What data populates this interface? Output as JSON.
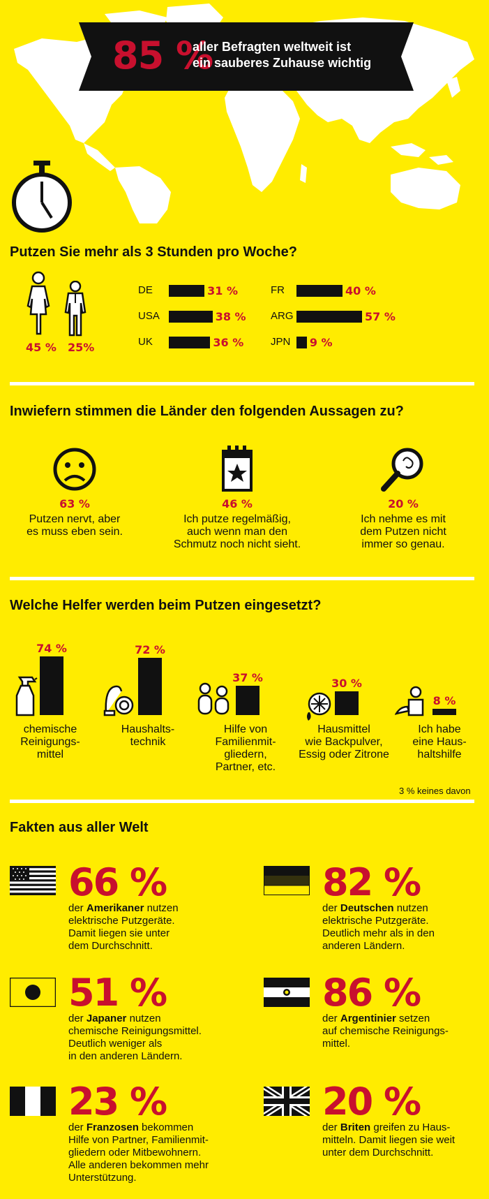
{
  "banner": {
    "pct": "85 %",
    "line1": "aller Befragten weltweit ist",
    "line2": "ein sauberes Zuhause wichtig"
  },
  "hours": {
    "question": "Putzen Sie mehr als 3 Stunden pro Woche?",
    "female_pct": "45 %",
    "male_pct": "25%",
    "countries": [
      {
        "label": "DE",
        "value": 31,
        "text": "31 %"
      },
      {
        "label": "USA",
        "value": 38,
        "text": "38 %"
      },
      {
        "label": "UK",
        "value": 36,
        "text": "36 %"
      },
      {
        "label": "FR",
        "value": 40,
        "text": "40 %"
      },
      {
        "label": "ARG",
        "value": 57,
        "text": "57 %"
      },
      {
        "label": "JPN",
        "value": 9,
        "text": "9 %"
      }
    ]
  },
  "statements": {
    "question": "Inwiefern stimmen die Länder den folgenden Aussagen zu?",
    "items": [
      {
        "icon": "sad-face-icon",
        "pct": "63 %",
        "lines": [
          "Putzen nervt, aber",
          "es muss eben sein."
        ]
      },
      {
        "icon": "calendar-star-icon",
        "pct": "46 %",
        "lines": [
          "Ich putze regelmäßig,",
          "auch wenn man den",
          "Schmutz noch nicht sieht."
        ]
      },
      {
        "icon": "magnifier-icon",
        "pct": "20 %",
        "lines": [
          "Ich nehme es mit",
          "dem Putzen nicht",
          "immer so genau."
        ]
      }
    ]
  },
  "helpers": {
    "question": "Welche Helfer werden beim Putzen eingesetzt?",
    "items": [
      {
        "icon": "spray-bottle-icon",
        "value": 74,
        "text": "74 %",
        "lines": [
          "chemische",
          "Reinigungs-",
          "mittel"
        ]
      },
      {
        "icon": "vacuum-cleaner-icon",
        "value": 72,
        "text": "72 %",
        "lines": [
          "Haushalts-",
          "technik"
        ]
      },
      {
        "icon": "family-icon",
        "value": 37,
        "text": "37 %",
        "lines": [
          "Hilfe von",
          "Familienmit-",
          "gliedern,",
          "Partner, etc."
        ]
      },
      {
        "icon": "lemon-icon",
        "value": 30,
        "text": "30 %",
        "lines": [
          "Hausmittel",
          "wie Backpulver,",
          "Essig oder Zitrone"
        ]
      },
      {
        "icon": "housekeeper-icon",
        "value": 8,
        "text": "8 %",
        "lines": [
          "Ich habe",
          "eine Haus-",
          "haltshilfe"
        ]
      }
    ],
    "note": "3 % keines davon"
  },
  "facts": {
    "title": "Fakten aus aller Welt",
    "items": [
      {
        "flag": "usa-flag-icon",
        "pct": "66 %",
        "bold": "Amerikaner",
        "pre": "der ",
        "post": " nutzen",
        "lines": [
          "elektrische Putzgeräte.",
          "Damit liegen sie unter",
          "dem Durchschnitt."
        ]
      },
      {
        "flag": "germany-flag-icon",
        "pct": "82 %",
        "bold": "Deutschen",
        "pre": "der ",
        "post": " nutzen",
        "lines": [
          "elektrische Putzgeräte.",
          "Deutlich mehr als in den",
          "anderen Ländern."
        ]
      },
      {
        "flag": "japan-flag-icon",
        "pct": "51 %",
        "bold": "Japaner",
        "pre": "der ",
        "post": " nutzen",
        "lines": [
          "chemische Reinigungsmittel.",
          "Deutlich weniger als",
          "in den anderen Ländern."
        ]
      },
      {
        "flag": "argentina-flag-icon",
        "pct": "86 %",
        "bold": "Argentinier",
        "pre": "der ",
        "post": " setzen",
        "lines": [
          "auf chemische Reinigungs-",
          "mittel."
        ]
      },
      {
        "flag": "france-flag-icon",
        "pct": "23 %",
        "bold": "Franzosen",
        "pre": "der ",
        "post": " bekommen",
        "lines": [
          "Hilfe von Partner, Familienmit-",
          "gliedern oder Mitbewohnern.",
          "Alle anderen bekommen mehr",
          "Unterstützung."
        ]
      },
      {
        "flag": "uk-flag-icon",
        "pct": "20 %",
        "bold": "Briten",
        "pre": "der ",
        "post": " greifen zu Haus-",
        "lines": [
          "mitteln. Damit liegen sie weit",
          "unter dem Durchschnitt."
        ]
      }
    ]
  },
  "colors": {
    "background": "#ffec00",
    "accent": "#c8102e",
    "ink": "#111111",
    "map": "#ffffff"
  }
}
